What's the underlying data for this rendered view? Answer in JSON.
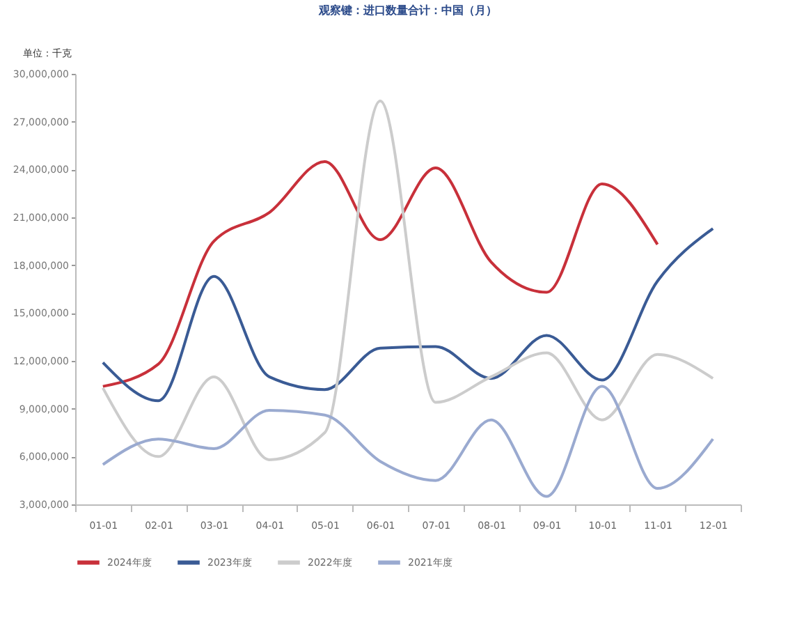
{
  "chart_data": {
    "type": "line",
    "title": "观察键：进口数量合计：中国（月）",
    "ylabel": "单位：千克",
    "categories": [
      "01-01",
      "02-01",
      "03-01",
      "04-01",
      "05-01",
      "06-01",
      "07-01",
      "08-01",
      "09-01",
      "10-01",
      "11-01",
      "12-01"
    ],
    "series": [
      {
        "name": "2024年度",
        "color": "#c8303a",
        "values": [
          10400000,
          11800000,
          19500000,
          21300000,
          24500000,
          19600000,
          24100000,
          18200000,
          16300000,
          23100000,
          19300000,
          null
        ]
      },
      {
        "name": "2023年度",
        "color": "#3a5b95",
        "values": [
          11900000,
          9500000,
          17300000,
          11000000,
          10200000,
          12800000,
          12900000,
          10900000,
          13600000,
          10800000,
          17000000,
          20300000
        ]
      },
      {
        "name": "2022年度",
        "color": "#cccccc",
        "values": [
          10300000,
          6000000,
          11000000,
          5800000,
          7500000,
          28300000,
          9400000,
          11000000,
          12500000,
          8300000,
          12400000,
          10900000
        ]
      },
      {
        "name": "2021年度",
        "color": "#9aaad0",
        "values": [
          5500000,
          7100000,
          6500000,
          8900000,
          8600000,
          5700000,
          4500000,
          8300000,
          3500000,
          10400000,
          4000000,
          7100000
        ]
      }
    ],
    "ylim": [
      3000000,
      30000000
    ],
    "yticks": [
      {
        "value": 3000000,
        "label": "3,000,000"
      },
      {
        "value": 6000000,
        "label": "6,000,000"
      },
      {
        "value": 9000000,
        "label": "9,000,000"
      },
      {
        "value": 12000000,
        "label": "12,000,000"
      },
      {
        "value": 15000000,
        "label": "15,000,000"
      },
      {
        "value": 18000000,
        "label": "18,000,000"
      },
      {
        "value": 21000000,
        "label": "21,000,000"
      },
      {
        "value": 24000000,
        "label": "24,000,000"
      },
      {
        "value": 27000000,
        "label": "27,000,000"
      },
      {
        "value": 30000000,
        "label": "30,000,000"
      }
    ],
    "grid": false,
    "legend": "bottom",
    "marker": "none",
    "line_style": "solid"
  }
}
